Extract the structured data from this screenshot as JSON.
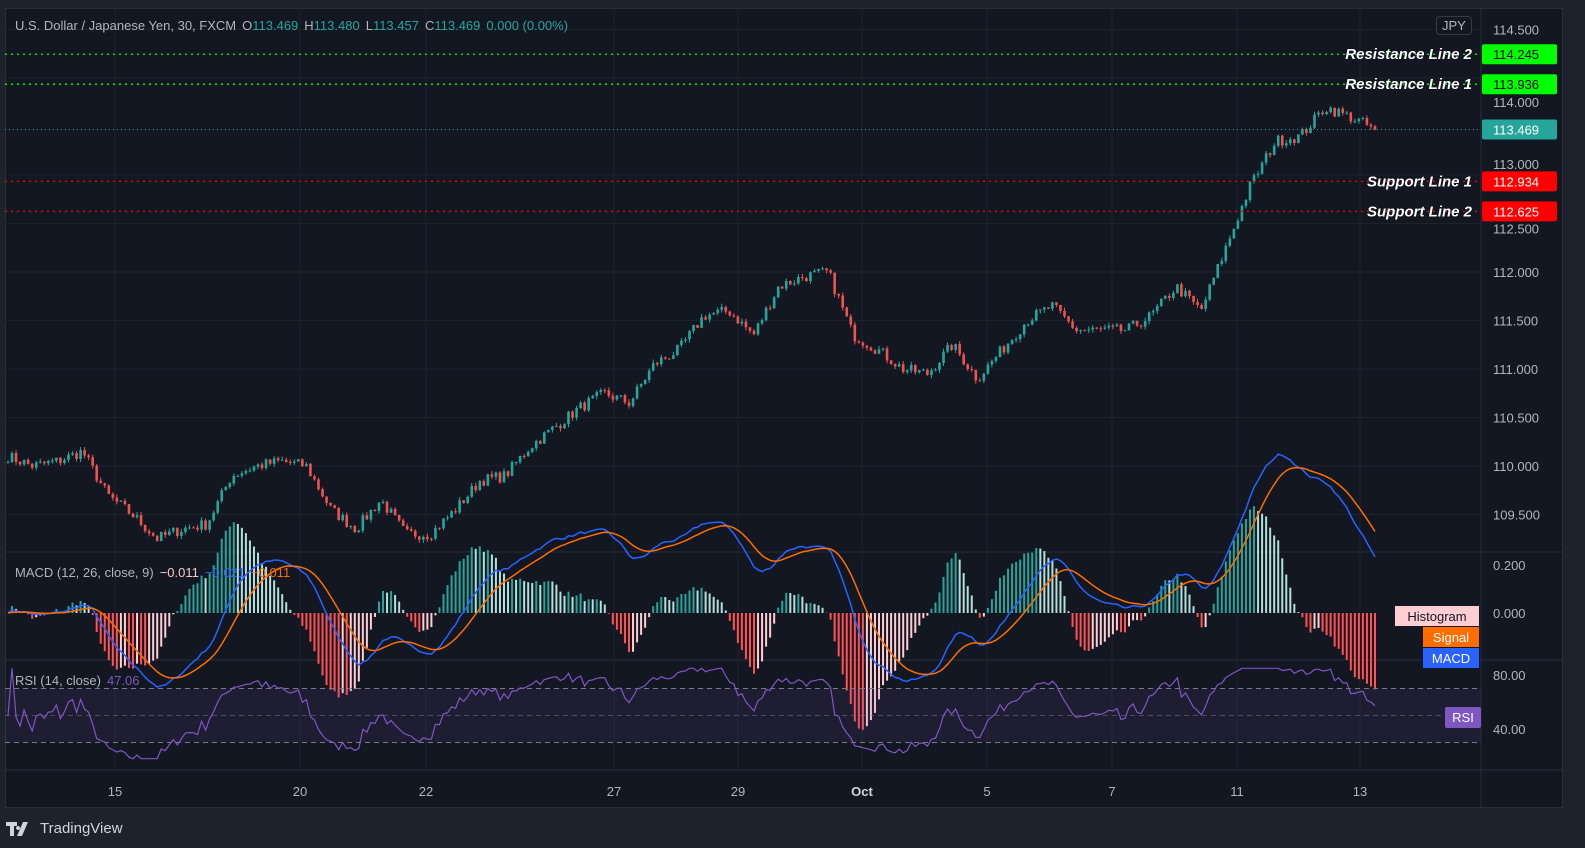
{
  "header": {
    "symbol": "U.S. Dollar / Japanese Yen, 30, FXCM",
    "open_label": "O",
    "open": "113.469",
    "high_label": "H",
    "high": "113.480",
    "low_label": "L",
    "low": "113.457",
    "close_label": "C",
    "close": "113.469",
    "change": "0.000 (0.00%)"
  },
  "currency_button": "JPY",
  "macd_legend": {
    "title": "MACD (12, 26, close, 9)",
    "histogram": "−0.011",
    "macd": "−0.021",
    "signal": "−0.011"
  },
  "macd_labels": {
    "histogram": "Histogram",
    "signal": "Signal",
    "macd": "MACD"
  },
  "rsi_legend": {
    "title": "RSI (14, close)",
    "value": "47.06",
    "label": "RSI"
  },
  "brand": "TradingView",
  "colors": {
    "up": "#26a69a",
    "down": "#ef5350",
    "macd": "#2962ff",
    "signal": "#ff6d00",
    "rsi": "#7e57c2",
    "resistance": "#00ff00",
    "support": "#ff0000",
    "last": "#26a69a"
  },
  "chart_data": [
    {
      "type": "candlestick",
      "title": "U.S. Dollar / Japanese Yen, 30, FXCM",
      "x_ticks": [
        "15",
        "20",
        "22",
        "27",
        "29",
        "Oct",
        "5",
        "7",
        "11",
        "13"
      ],
      "y_ticks": [
        "109.500",
        "110.000",
        "110.500",
        "111.000",
        "111.500",
        "112.000",
        "112.500",
        "113.000",
        "114.000",
        "114.500"
      ],
      "ylim": [
        109.1,
        114.7
      ],
      "approx_close": [
        110.1,
        110.0,
        110.05,
        110.15,
        109.7,
        109.5,
        109.25,
        109.35,
        109.4,
        109.9,
        110.0,
        110.05,
        110.0,
        109.55,
        109.35,
        109.65,
        109.3,
        109.3,
        109.55,
        109.85,
        109.9,
        110.2,
        110.4,
        110.6,
        110.75,
        110.65,
        111.05,
        111.2,
        111.55,
        111.6,
        111.35,
        111.85,
        111.95,
        112.0,
        111.35,
        111.2,
        111.0,
        110.95,
        111.25,
        110.9,
        111.2,
        111.5,
        111.65,
        111.4,
        111.4,
        111.4,
        111.55,
        111.85,
        111.6,
        112.25,
        112.9,
        113.35,
        113.4,
        113.7,
        113.6,
        113.469
      ],
      "last_price": "113.469",
      "levels": [
        {
          "label": "Resistance Line 2",
          "value": "114.245",
          "kind": "resistance"
        },
        {
          "label": "Resistance Line 1",
          "value": "113.936",
          "kind": "resistance"
        },
        {
          "label": "Support Line 1",
          "value": "112.934",
          "kind": "support"
        },
        {
          "label": "Support Line 2",
          "value": "112.625",
          "kind": "support"
        }
      ]
    },
    {
      "type": "macd",
      "y_ticks": [
        "0.200",
        "0.000"
      ],
      "ylim": [
        -0.16,
        0.22
      ]
    },
    {
      "type": "rsi",
      "y_ticks": [
        "80.00",
        "40.00"
      ],
      "ylim": [
        15,
        90
      ],
      "band": [
        30,
        70
      ]
    }
  ]
}
